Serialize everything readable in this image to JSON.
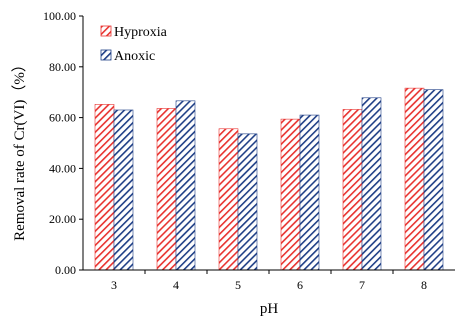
{
  "chart_data": {
    "type": "bar",
    "xlabel": "pH",
    "ylabel": "Removal rate of Cr(VI)（%）",
    "categories": [
      "3",
      "4",
      "5",
      "6",
      "7",
      "8"
    ],
    "series": [
      {
        "name": "Hyproxia",
        "values": [
          65.2,
          63.6,
          55.6,
          59.4,
          63.2,
          71.6
        ],
        "color": "#e8322f",
        "pattern": "diagonal-hatch"
      },
      {
        "name": "Anoxic",
        "values": [
          63.0,
          66.6,
          53.6,
          61.0,
          67.8,
          71.0
        ],
        "color": "#1f3f86",
        "pattern": "diagonal-hatch"
      }
    ],
    "ylim": [
      0,
      100
    ],
    "yticks": [
      "0.00",
      "20.00",
      "40.00",
      "60.00",
      "80.00",
      "100.00"
    ],
    "grid": false,
    "legend_position": "top-left"
  }
}
